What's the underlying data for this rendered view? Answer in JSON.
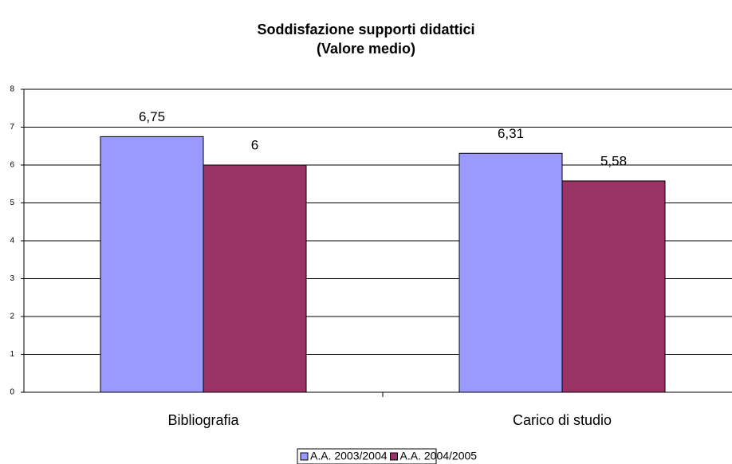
{
  "chart_data": {
    "type": "bar",
    "title": "Soddisfazione supporti didattici",
    "subtitle": "(Valore medio)",
    "categories": [
      "Bibliografia",
      "Carico di studio"
    ],
    "series": [
      {
        "name": "A.A. 2003/2004",
        "color": "#9999ff",
        "values": [
          6.75,
          6.31
        ],
        "value_labels": [
          "6,75",
          "6,31"
        ]
      },
      {
        "name": "A.A. 2004/2005",
        "color": "#993366",
        "values": [
          6,
          5.58
        ],
        "value_labels": [
          "6",
          "5,58"
        ]
      }
    ],
    "ylim": [
      0,
      8
    ],
    "yticks": [
      0,
      1,
      2,
      3,
      4,
      5,
      6,
      7,
      8
    ],
    "grid": true,
    "legend": "bottom"
  }
}
